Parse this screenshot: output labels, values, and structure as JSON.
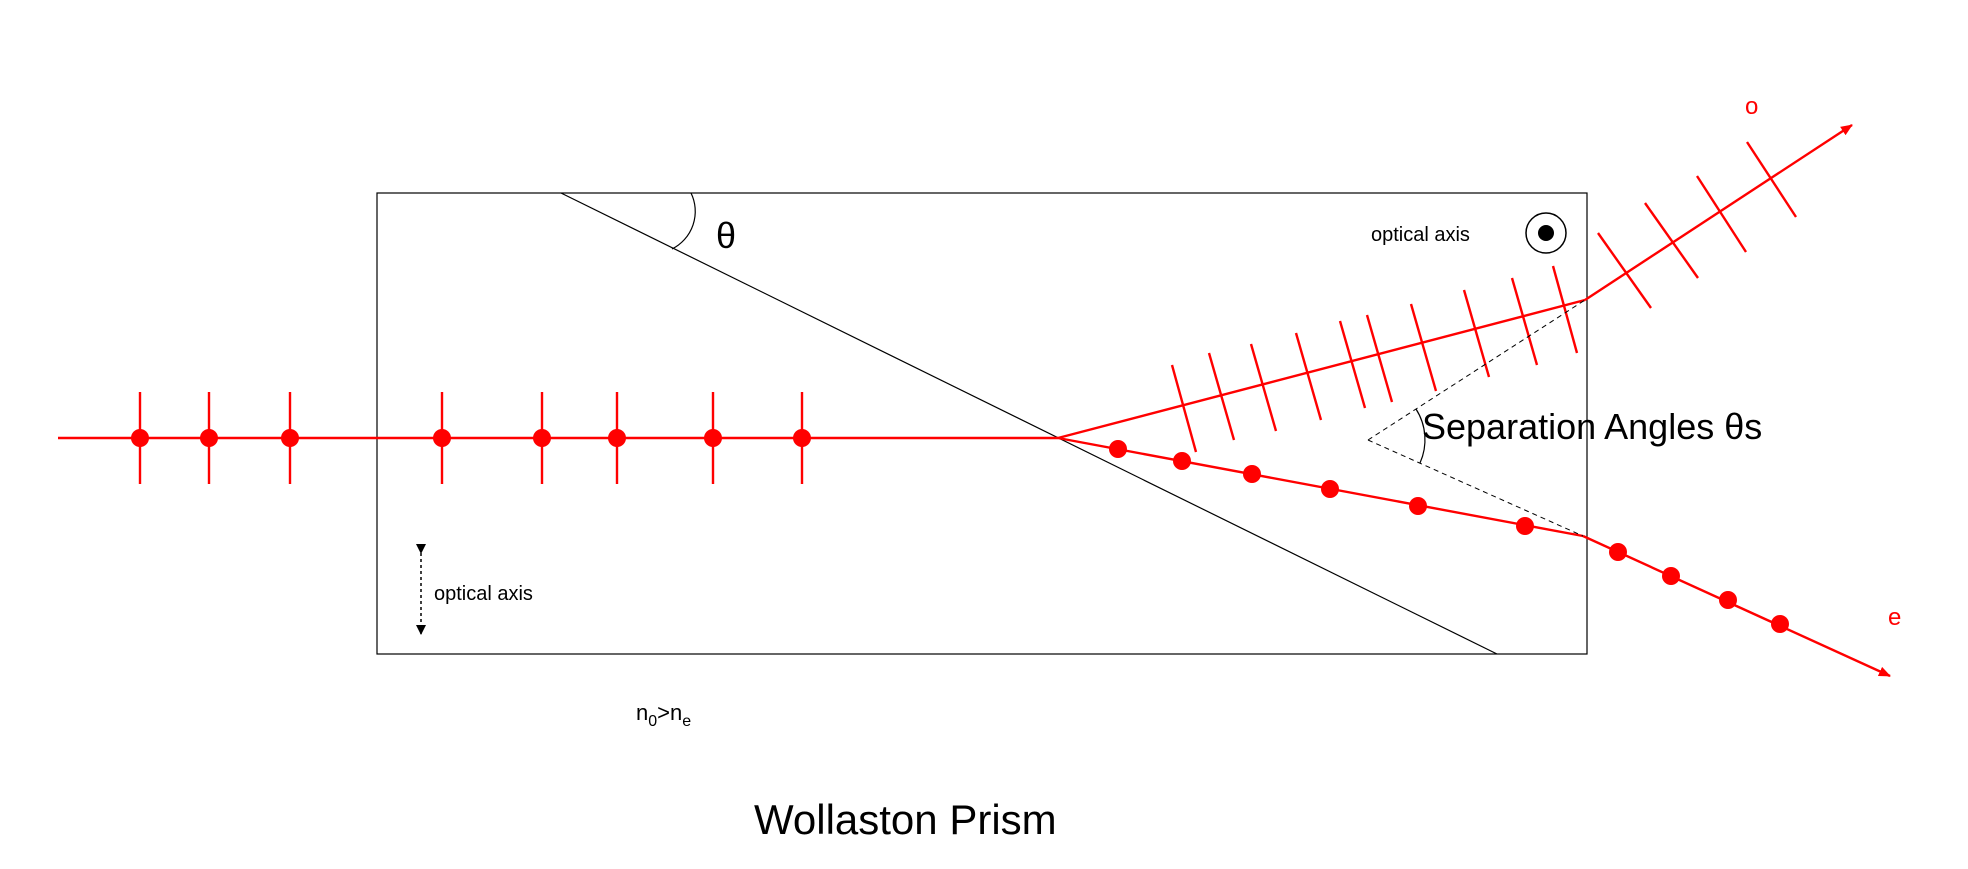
{
  "labels": {
    "theta": "θ",
    "optical_axis_top": "optical axis",
    "optical_axis_bottom": "optical axis",
    "separation_angles": "Separation Angles θs",
    "o_ray": "o",
    "e_ray": "e",
    "index_n": "n",
    "index_n_sub": "0",
    "index_gt": ">",
    "index_e_sub": "e",
    "title": "Wollaston Prism"
  },
  "colors": {
    "beam": "#ff0000",
    "outline": "#000000",
    "background": "#ffffff"
  }
}
